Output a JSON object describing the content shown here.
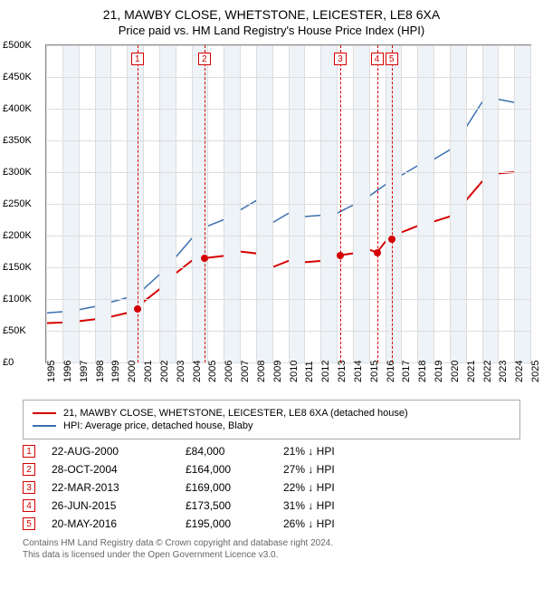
{
  "title": "21, MAWBY CLOSE, WHETSTONE, LEICESTER, LE8 6XA",
  "subtitle": "Price paid vs. HM Land Registry's House Price Index (HPI)",
  "chart": {
    "type": "line",
    "background_color": "#ffffff",
    "grid_color": "#dddddd",
    "border_color": "#888888",
    "ylim": [
      0,
      500000
    ],
    "ytick_step": 50000,
    "yticks": [
      "£0",
      "£50K",
      "£100K",
      "£150K",
      "£200K",
      "£250K",
      "£300K",
      "£350K",
      "£400K",
      "£450K",
      "£500K"
    ],
    "xlim": [
      1995,
      2025
    ],
    "xticks": [
      1995,
      1996,
      1997,
      1998,
      1999,
      2000,
      2001,
      2002,
      2003,
      2004,
      2005,
      2006,
      2007,
      2008,
      2009,
      2010,
      2011,
      2012,
      2013,
      2014,
      2015,
      2016,
      2017,
      2018,
      2019,
      2020,
      2021,
      2022,
      2023,
      2024,
      2025
    ],
    "alt_band_color": "#eef3f8",
    "series": [
      {
        "name": "21, MAWBY CLOSE, WHETSTONE, LEICESTER, LE8 6XA (detached house)",
        "color": "#d40000",
        "line_width": 2,
        "points": [
          [
            1995,
            62000
          ],
          [
            1996,
            63000
          ],
          [
            1997,
            65000
          ],
          [
            1998,
            68000
          ],
          [
            1999,
            72000
          ],
          [
            2000,
            78000
          ],
          [
            2000.65,
            84000
          ],
          [
            2001,
            95000
          ],
          [
            2002,
            115000
          ],
          [
            2003,
            140000
          ],
          [
            2004,
            160000
          ],
          [
            2004.8,
            164000
          ],
          [
            2005,
            165000
          ],
          [
            2006,
            168000
          ],
          [
            2007,
            175000
          ],
          [
            2008,
            172000
          ],
          [
            2009,
            150000
          ],
          [
            2010,
            160000
          ],
          [
            2011,
            158000
          ],
          [
            2012,
            160000
          ],
          [
            2013,
            165000
          ],
          [
            2013.22,
            169000
          ],
          [
            2014,
            172000
          ],
          [
            2015,
            178000
          ],
          [
            2015.5,
            173500
          ],
          [
            2016,
            190000
          ],
          [
            2016.4,
            195000
          ],
          [
            2017,
            205000
          ],
          [
            2018,
            215000
          ],
          [
            2019,
            222000
          ],
          [
            2020,
            230000
          ],
          [
            2021,
            255000
          ],
          [
            2022,
            285000
          ],
          [
            2023,
            298000
          ],
          [
            2024,
            300000
          ],
          [
            2025,
            300000
          ]
        ]
      },
      {
        "name": "HPI: Average price, detached house, Blaby",
        "color": "#3a6fb0",
        "line_width": 1.5,
        "points": [
          [
            1995,
            78000
          ],
          [
            1996,
            80000
          ],
          [
            1997,
            83000
          ],
          [
            1998,
            88000
          ],
          [
            1999,
            95000
          ],
          [
            2000,
            102000
          ],
          [
            2001,
            115000
          ],
          [
            2002,
            138000
          ],
          [
            2003,
            165000
          ],
          [
            2004,
            195000
          ],
          [
            2005,
            215000
          ],
          [
            2006,
            225000
          ],
          [
            2007,
            240000
          ],
          [
            2008,
            255000
          ],
          [
            2009,
            220000
          ],
          [
            2010,
            235000
          ],
          [
            2011,
            230000
          ],
          [
            2012,
            232000
          ],
          [
            2013,
            235000
          ],
          [
            2014,
            248000
          ],
          [
            2015,
            262000
          ],
          [
            2016,
            280000
          ],
          [
            2017,
            295000
          ],
          [
            2018,
            310000
          ],
          [
            2019,
            320000
          ],
          [
            2020,
            335000
          ],
          [
            2021,
            370000
          ],
          [
            2022,
            410000
          ],
          [
            2023,
            415000
          ],
          [
            2024,
            410000
          ],
          [
            2025,
            408000
          ]
        ]
      }
    ],
    "markers": [
      {
        "num": "1",
        "x": 2000.65,
        "y": 84000,
        "color": "#d40000"
      },
      {
        "num": "2",
        "x": 2004.8,
        "y": 164000,
        "color": "#d40000"
      },
      {
        "num": "3",
        "x": 2013.22,
        "y": 169000,
        "color": "#d40000"
      },
      {
        "num": "4",
        "x": 2015.5,
        "y": 173500,
        "color": "#d40000"
      },
      {
        "num": "5",
        "x": 2016.4,
        "y": 195000,
        "color": "#d40000"
      }
    ]
  },
  "legend": {
    "items": [
      {
        "label": "21, MAWBY CLOSE, WHETSTONE, LEICESTER, LE8 6XA (detached house)",
        "color": "#d40000"
      },
      {
        "label": "HPI: Average price, detached house, Blaby",
        "color": "#3a6fb0"
      }
    ]
  },
  "transactions": [
    {
      "num": "1",
      "date": "22-AUG-2000",
      "price": "£84,000",
      "diff": "21% ↓ HPI",
      "color": "#d40000"
    },
    {
      "num": "2",
      "date": "28-OCT-2004",
      "price": "£164,000",
      "diff": "27% ↓ HPI",
      "color": "#d40000"
    },
    {
      "num": "3",
      "date": "22-MAR-2013",
      "price": "£169,000",
      "diff": "22% ↓ HPI",
      "color": "#d40000"
    },
    {
      "num": "4",
      "date": "26-JUN-2015",
      "price": "£173,500",
      "diff": "31% ↓ HPI",
      "color": "#d40000"
    },
    {
      "num": "5",
      "date": "20-MAY-2016",
      "price": "£195,000",
      "diff": "26% ↓ HPI",
      "color": "#d40000"
    }
  ],
  "footer": {
    "line1": "Contains HM Land Registry data © Crown copyright and database right 2024.",
    "line2": "This data is licensed under the Open Government Licence v3.0."
  }
}
